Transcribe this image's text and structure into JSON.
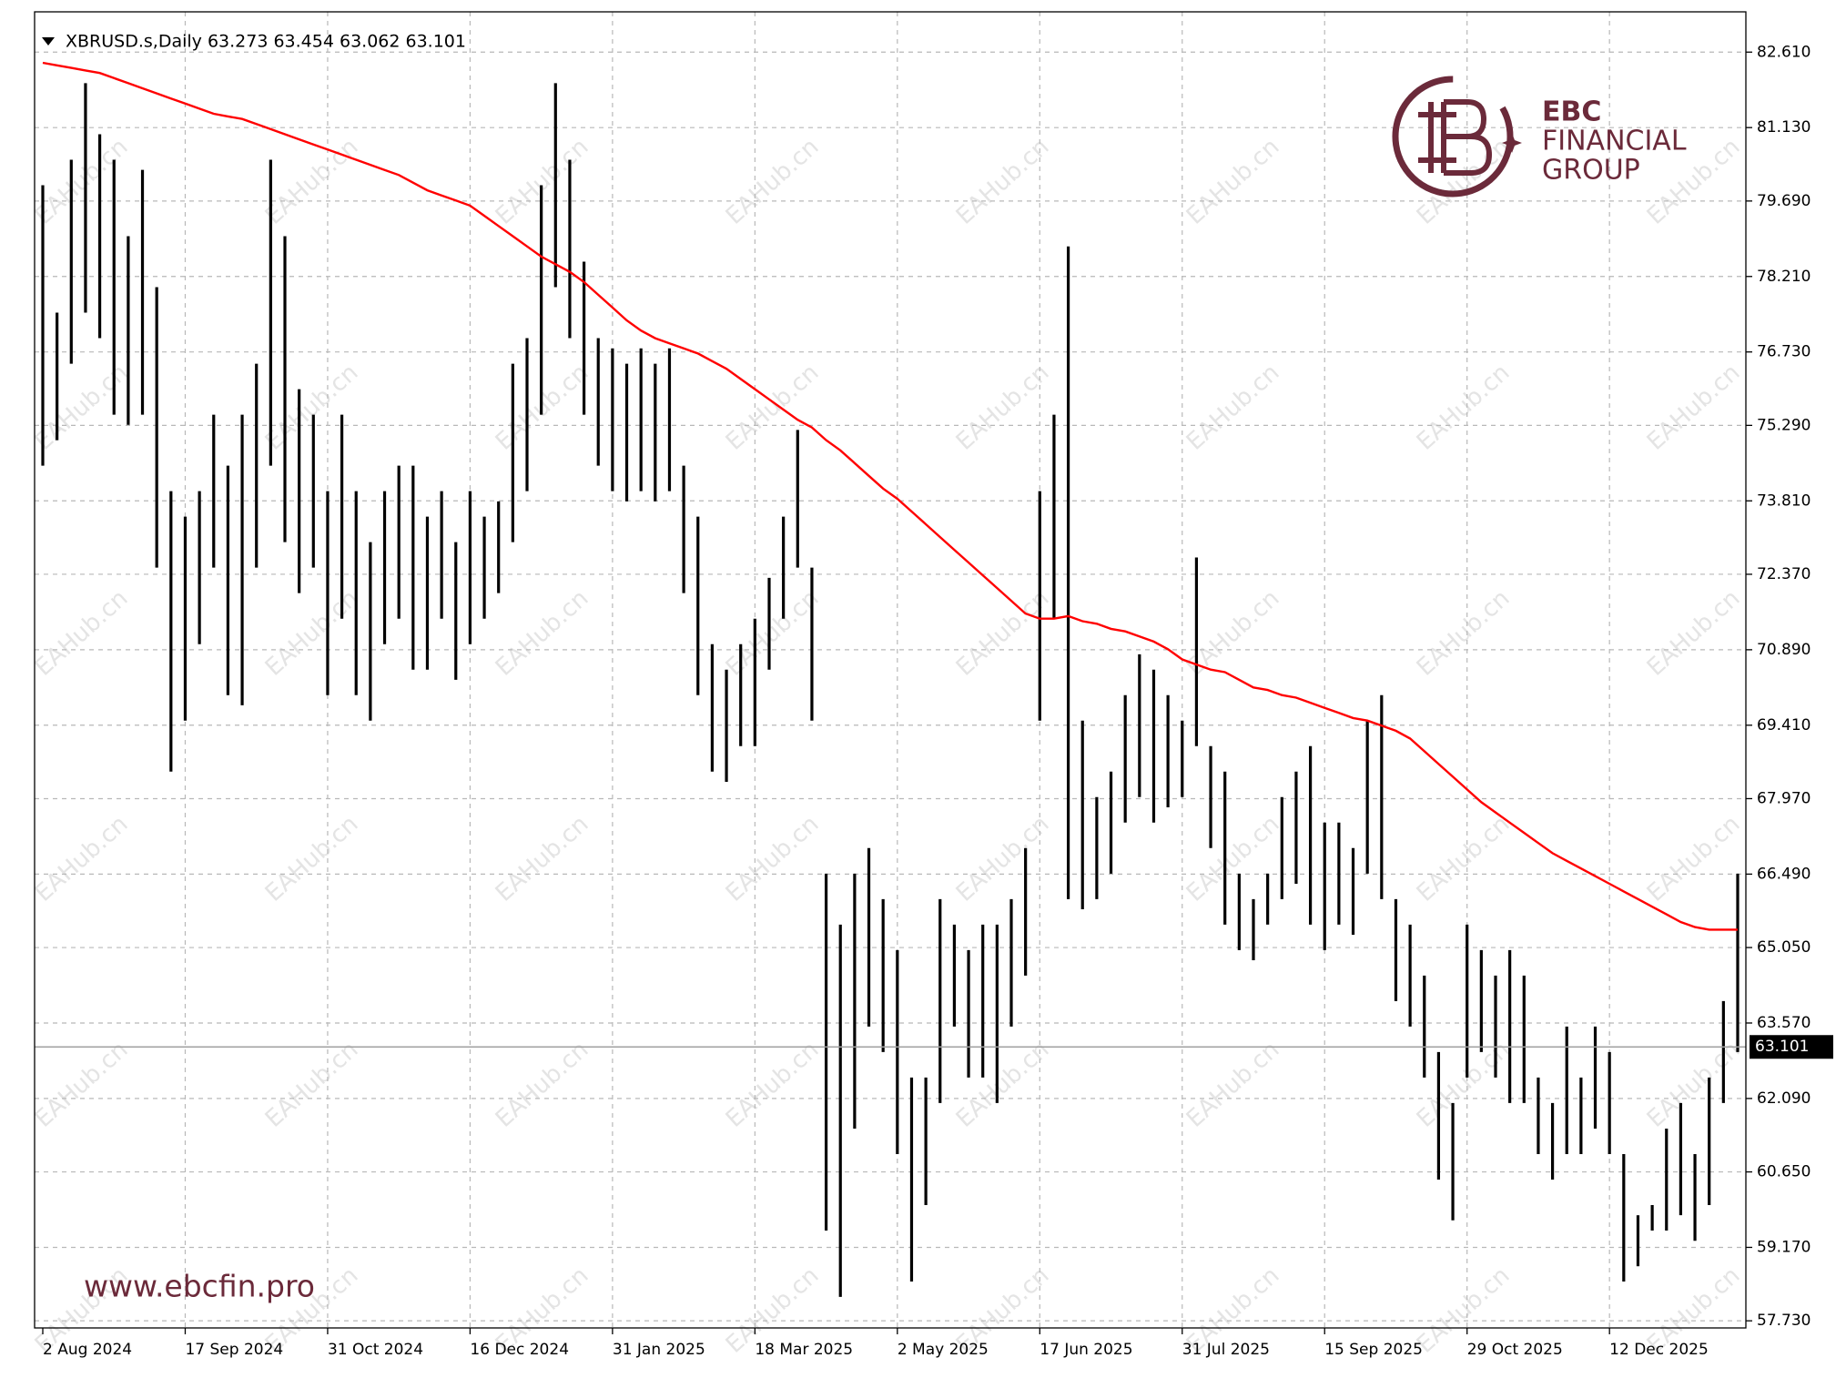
{
  "chart_data": {
    "type": "ohlc",
    "header": "XBRUSD.s,Daily  63.273 63.454 63.062 63.101",
    "high": [
      80.0,
      77.5,
      80.5,
      82.0,
      81.0,
      80.5,
      79.0,
      80.3,
      78.0,
      74.0,
      73.5,
      74.0,
      75.5,
      74.5,
      75.5,
      76.5,
      80.5,
      79.0,
      76.0,
      75.5,
      74.0,
      75.5,
      74.0,
      73.0,
      74.0,
      74.5,
      74.5,
      73.5,
      74.0,
      73.0,
      74.0,
      73.5,
      73.8,
      76.5,
      77.0,
      80.0,
      82.0,
      80.5,
      78.5,
      77.0,
      76.8,
      76.5,
      76.8,
      76.5,
      76.8,
      74.5,
      73.5,
      71.0,
      70.5,
      71.0,
      71.5,
      72.3,
      73.5,
      75.2,
      72.5,
      66.5,
      65.5,
      66.5,
      67.0,
      66.0,
      65.0,
      62.5,
      62.5,
      66.0,
      65.5,
      65.0,
      65.5,
      65.5,
      66.0,
      67.0,
      74.0,
      75.5,
      78.8,
      69.5,
      68.0,
      68.5,
      70.0,
      70.8,
      70.5,
      70.0,
      69.5,
      72.7,
      69.0,
      68.5,
      66.5,
      66.0,
      66.5,
      68.0,
      68.5,
      69.0,
      67.5,
      67.5,
      67.0,
      69.5,
      70.0,
      66.0,
      65.5,
      64.5,
      63.0,
      62.0,
      65.5,
      65.0,
      64.5,
      65.0,
      64.5,
      62.5,
      62.0,
      63.5,
      62.5,
      63.5,
      63.0,
      61.0,
      59.8,
      60.0,
      61.5,
      62.0,
      61.0,
      62.5,
      64.0,
      66.5
    ],
    "low": [
      74.5,
      75.0,
      76.5,
      77.5,
      77.0,
      75.5,
      75.3,
      75.5,
      72.5,
      68.5,
      69.5,
      71.0,
      72.5,
      70.0,
      69.8,
      72.5,
      74.5,
      73.0,
      72.0,
      72.5,
      70.0,
      71.5,
      70.0,
      69.5,
      71.0,
      71.5,
      70.5,
      70.5,
      71.5,
      70.3,
      71.0,
      71.5,
      72.0,
      73.0,
      74.0,
      75.5,
      78.0,
      77.0,
      75.5,
      74.5,
      74.0,
      73.8,
      74.0,
      73.8,
      74.0,
      72.0,
      70.0,
      68.5,
      68.3,
      69.0,
      69.0,
      70.5,
      71.5,
      72.5,
      69.5,
      59.5,
      58.2,
      61.5,
      63.5,
      63.0,
      61.0,
      58.5,
      60.0,
      62.0,
      63.5,
      62.5,
      62.5,
      62.0,
      63.5,
      64.5,
      69.5,
      71.5,
      66.0,
      65.8,
      66.0,
      66.5,
      67.5,
      68.0,
      67.5,
      67.8,
      68.0,
      69.0,
      67.0,
      65.5,
      65.0,
      64.8,
      65.5,
      66.0,
      66.3,
      65.5,
      65.0,
      65.5,
      65.3,
      66.5,
      66.0,
      64.0,
      63.5,
      62.5,
      60.5,
      59.7,
      62.5,
      63.0,
      62.5,
      62.0,
      62.0,
      61.0,
      60.5,
      61.0,
      61.0,
      61.5,
      61.0,
      58.5,
      58.8,
      59.5,
      59.5,
      59.8,
      59.3,
      60.0,
      62.0,
      63.0
    ],
    "ma": [
      82.4,
      82.35,
      82.3,
      82.25,
      82.2,
      82.1,
      82.0,
      81.9,
      81.8,
      81.7,
      81.6,
      81.5,
      81.4,
      81.35,
      81.3,
      81.2,
      81.1,
      81.0,
      80.9,
      80.8,
      80.7,
      80.6,
      80.5,
      80.4,
      80.3,
      80.2,
      80.05,
      79.9,
      79.8,
      79.7,
      79.6,
      79.4,
      79.2,
      79.0,
      78.8,
      78.6,
      78.45,
      78.3,
      78.1,
      77.85,
      77.6,
      77.35,
      77.15,
      77.0,
      76.9,
      76.8,
      76.7,
      76.55,
      76.4,
      76.2,
      76.0,
      75.8,
      75.6,
      75.4,
      75.25,
      75.0,
      74.8,
      74.55,
      74.3,
      74.05,
      73.85,
      73.6,
      73.35,
      73.1,
      72.85,
      72.6,
      72.35,
      72.1,
      71.85,
      71.6,
      71.5,
      71.5,
      71.55,
      71.45,
      71.4,
      71.3,
      71.25,
      71.15,
      71.05,
      70.9,
      70.7,
      70.6,
      70.5,
      70.45,
      70.3,
      70.15,
      70.1,
      70.0,
      69.95,
      69.85,
      69.75,
      69.65,
      69.55,
      69.5,
      69.4,
      69.3,
      69.15,
      68.9,
      68.65,
      68.4,
      68.15,
      67.9,
      67.7,
      67.5,
      67.3,
      67.1,
      66.9,
      66.75,
      66.6,
      66.45,
      66.3,
      66.15,
      66.0,
      65.85,
      65.7,
      65.55,
      65.45,
      65.4,
      65.4,
      65.4
    ],
    "bar_color": "#000000",
    "ma_color": "#ff0000",
    "ylim": [
      57.59,
      83.4
    ],
    "yticks": [
      {
        "value": 57.73,
        "label": "57.730"
      },
      {
        "value": 59.17,
        "label": "59.170"
      },
      {
        "value": 60.65,
        "label": "60.650"
      },
      {
        "value": 62.09,
        "label": "62.090"
      },
      {
        "value": 63.57,
        "label": "63.570"
      },
      {
        "value": 65.05,
        "label": "65.050"
      },
      {
        "value": 66.49,
        "label": "66.490"
      },
      {
        "value": 67.97,
        "label": "67.970"
      },
      {
        "value": 69.41,
        "label": "69.410"
      },
      {
        "value": 70.89,
        "label": "70.890"
      },
      {
        "value": 72.37,
        "label": "72.370"
      },
      {
        "value": 73.81,
        "label": "73.810"
      },
      {
        "value": 75.29,
        "label": "75.290"
      },
      {
        "value": 76.73,
        "label": "76.730"
      },
      {
        "value": 78.21,
        "label": "78.210"
      },
      {
        "value": 79.69,
        "label": "79.690"
      },
      {
        "value": 81.13,
        "label": "81.130"
      },
      {
        "value": 82.61,
        "label": "82.610"
      }
    ],
    "xticks": [
      {
        "value": 0,
        "label": "2 Aug 2024"
      },
      {
        "value": 10,
        "label": "17 Sep 2024"
      },
      {
        "value": 20,
        "label": "31 Oct 2024"
      },
      {
        "value": 30,
        "label": "16 Dec 2024"
      },
      {
        "value": 40,
        "label": "31 Jan 2025"
      },
      {
        "value": 50,
        "label": "18 Mar 2025"
      },
      {
        "value": 60,
        "label": "2 May 2025"
      },
      {
        "value": 70,
        "label": "17 Jun 2025"
      },
      {
        "value": 80,
        "label": "31 Jul 2025"
      },
      {
        "value": 90,
        "label": "15 Sep 2025"
      },
      {
        "value": 100,
        "label": "29 Oct 2025"
      },
      {
        "value": 110,
        "label": "12 Dec 2025"
      }
    ],
    "last_price": {
      "value": 63.101,
      "label": "63.101"
    },
    "grid": true,
    "watermark": "EAHub.cn",
    "logo": {
      "line1": "EBC",
      "line2": "FINANCIAL",
      "line3": "GROUP"
    },
    "url": "www.ebcfin.pro"
  }
}
